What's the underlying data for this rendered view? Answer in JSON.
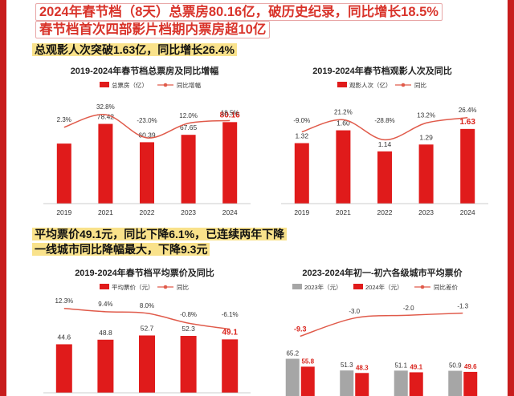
{
  "headline": {
    "line1": "2024年春节档（8天）总票房80.16亿，破历史纪录，同比增长18.5%",
    "line2": "春节档首次四部影片档期内票房超10亿"
  },
  "section1": {
    "highlight": "总观影人次突破1.63亿，同比增长26.4%"
  },
  "section2": {
    "highlight_line1": "平均票价49.1元，同比下降6.1%，已连续两年下降",
    "highlight_line2": "一线城市同比降幅最大，下降9.3元"
  },
  "colors": {
    "bar_red": "#e01b1b",
    "line_red": "#e05a4a",
    "bar_gray": "#a6a6a6",
    "highlight_bg": "#f9e28b",
    "title_red": "#d9342b"
  },
  "chart_data": [
    {
      "type": "bar",
      "title": "2019-2024年春节档总票房及同比增幅",
      "categories": [
        "2019",
        "2021",
        "2022",
        "2023",
        "2024"
      ],
      "series": [
        {
          "name": "总票房（亿）",
          "values": [
            59.05,
            78.42,
            60.39,
            67.65,
            80.16
          ]
        },
        {
          "name": "同比增幅",
          "values": [
            2.3,
            32.8,
            -23.0,
            12.0,
            18.5
          ]
        }
      ],
      "value_labels": [
        "",
        "78.42",
        "60.39",
        "67.65",
        "80.16"
      ],
      "pct_labels": [
        "2.3%",
        "32.8%",
        "-23.0%",
        "12.0%",
        "18.5%"
      ],
      "legend": [
        "总票房（亿）",
        "同比增幅"
      ]
    },
    {
      "type": "bar",
      "title": "2019-2024年春节档观影人次及同比",
      "categories": [
        "2019",
        "2021",
        "2022",
        "2023",
        "2024"
      ],
      "series": [
        {
          "name": "观影人次（亿）",
          "values": [
            1.32,
            1.6,
            1.14,
            1.29,
            1.63
          ]
        },
        {
          "name": "同比",
          "values": [
            -9.0,
            21.2,
            -28.8,
            13.2,
            26.4
          ]
        }
      ],
      "value_labels": [
        "1.32",
        "1.60",
        "1.14",
        "1.29",
        "1.63"
      ],
      "pct_labels": [
        "-9.0%",
        "21.2%",
        "-28.8%",
        "13.2%",
        "26.4%"
      ],
      "legend": [
        "观影人次（亿）",
        "同比"
      ]
    },
    {
      "type": "bar",
      "title": "2019-2024年春节档平均票价及同比",
      "categories": [
        "2019",
        "2021",
        "2022",
        "2023",
        "2024"
      ],
      "series": [
        {
          "name": "平均票价（元）",
          "values": [
            44.6,
            48.8,
            52.7,
            52.3,
            49.1
          ]
        },
        {
          "name": "同比",
          "values": [
            12.3,
            9.4,
            8.0,
            -0.8,
            -6.1
          ]
        }
      ],
      "value_labels": [
        "44.6",
        "48.8",
        "52.7",
        "52.3",
        "49.1"
      ],
      "pct_labels": [
        "12.3%",
        "9.4%",
        "8.0%",
        "-0.8%",
        "-6.1%"
      ],
      "legend": [
        "平均票价（元）",
        "同比"
      ]
    },
    {
      "type": "bar",
      "title": "2023-2024年初一-初六各级城市平均票价",
      "series": [
        {
          "name": "2023年（元）",
          "values": [
            65.2,
            51.3,
            51.1,
            50.9
          ]
        },
        {
          "name": "2024年（元）",
          "values": [
            55.8,
            48.3,
            49.1,
            49.6
          ]
        },
        {
          "name": "同比差价",
          "values": [
            -9.3,
            -3.0,
            -2.0,
            -1.3
          ]
        }
      ],
      "value_labels_2023": [
        "65.2",
        "51.3",
        "51.1",
        "50.9"
      ],
      "value_labels_2024": [
        "55.8",
        "48.3",
        "49.1",
        "49.6"
      ],
      "diff_labels": [
        "-9.3",
        "-3.0",
        "-2.0",
        "-1.3"
      ],
      "legend": [
        "2023年（元）",
        "2024年（元）",
        "同比差价"
      ]
    }
  ]
}
